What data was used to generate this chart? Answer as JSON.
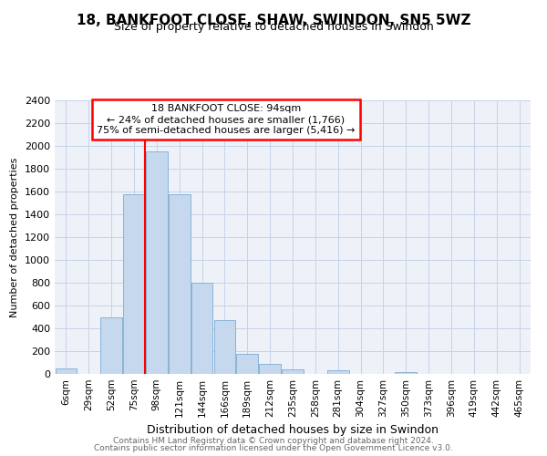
{
  "title1": "18, BANKFOOT CLOSE, SHAW, SWINDON, SN5 5WZ",
  "title2": "Size of property relative to detached houses in Swindon",
  "xlabel": "Distribution of detached houses by size in Swindon",
  "ylabel": "Number of detached properties",
  "categories": [
    "6sqm",
    "29sqm",
    "52sqm",
    "75sqm",
    "98sqm",
    "121sqm",
    "144sqm",
    "166sqm",
    "189sqm",
    "212sqm",
    "235sqm",
    "258sqm",
    "281sqm",
    "304sqm",
    "327sqm",
    "350sqm",
    "373sqm",
    "396sqm",
    "419sqm",
    "442sqm",
    "465sqm"
  ],
  "values": [
    50,
    0,
    500,
    1580,
    1950,
    1580,
    800,
    475,
    175,
    90,
    40,
    0,
    30,
    0,
    0,
    20,
    0,
    0,
    0,
    0,
    0
  ],
  "bar_color": "#c5d8ed",
  "bar_edge_color": "#7aadd4",
  "red_line_index": 4,
  "annotation_line1": "18 BANKFOOT CLOSE: 94sqm",
  "annotation_line2": "← 24% of detached houses are smaller (1,766)",
  "annotation_line3": "75% of semi-detached houses are larger (5,416) →",
  "ylim": [
    0,
    2400
  ],
  "yticks": [
    0,
    200,
    400,
    600,
    800,
    1000,
    1200,
    1400,
    1600,
    1800,
    2000,
    2200,
    2400
  ],
  "footer1": "Contains HM Land Registry data © Crown copyright and database right 2024.",
  "footer2": "Contains public sector information licensed under the Open Government Licence v3.0.",
  "bg_color": "#eef2f8",
  "grid_color": "#c5d3e8",
  "title1_fontsize": 11,
  "title2_fontsize": 9,
  "xlabel_fontsize": 9,
  "ylabel_fontsize": 8,
  "footer_fontsize": 6.5,
  "footer_color": "#666666"
}
